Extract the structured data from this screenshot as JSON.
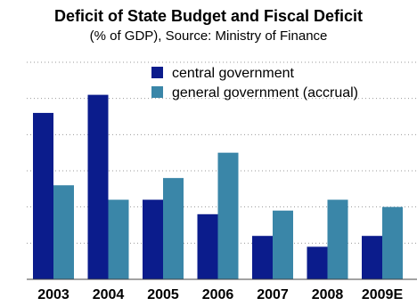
{
  "chart_data": {
    "type": "bar",
    "title": "Deficit of State Budget and Fiscal Deficit",
    "subtitle": "(% of GDP), Source: Ministry of Finance",
    "xlabel": "",
    "ylabel": "",
    "categories": [
      "2003",
      "2004",
      "2005",
      "2006",
      "2007",
      "2008",
      "2009E"
    ],
    "series": [
      {
        "name": "central government",
        "values": [
          4.6,
          5.1,
          2.2,
          1.8,
          1.2,
          0.9,
          1.2
        ],
        "color": "#0b1c8c"
      },
      {
        "name": "general government (accrual)",
        "values": [
          2.6,
          2.2,
          2.8,
          3.5,
          1.9,
          2.2,
          2.0
        ],
        "color": "#3a86a8"
      }
    ],
    "ylim": [
      0,
      6
    ],
    "grid": true,
    "legend_position": "top-right"
  }
}
